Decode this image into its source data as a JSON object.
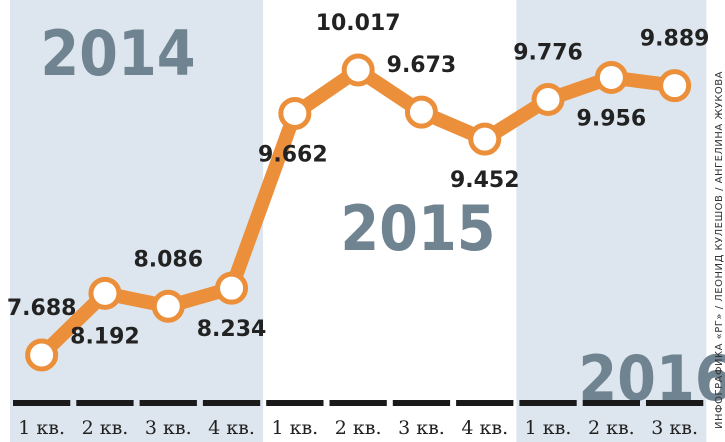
{
  "chart_data": {
    "type": "line",
    "years": [
      "2014",
      "2015",
      "2016"
    ],
    "categories": [
      "1 кв.",
      "2 кв.",
      "3 кв.",
      "4 кв.",
      "1 кв.",
      "2 кв.",
      "3 кв.",
      "4 кв.",
      "1 кв.",
      "2 кв.",
      "3 кв."
    ],
    "series": [
      {
        "color": "#ec8f3a",
        "values": [
          7.688,
          8.192,
          8.086,
          8.234,
          9.662,
          10.017,
          9.673,
          9.452,
          9.776,
          9.956,
          9.889
        ]
      }
    ],
    "credit": "ИНФОГРАФИКА «РГ» / ЛЕОНИД КУЛЕШОВ / АНГЕЛИНА ЖУКОВА"
  }
}
